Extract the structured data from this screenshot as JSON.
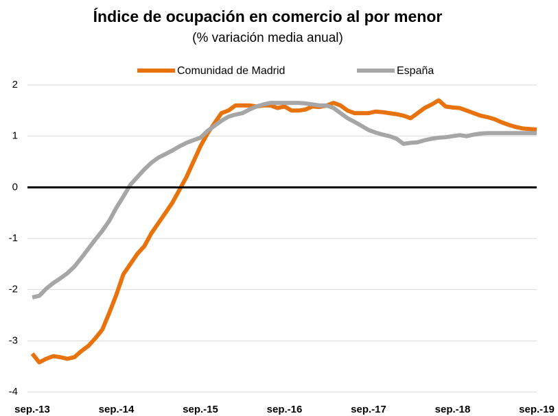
{
  "chart_data": {
    "type": "line",
    "title": "Índice de ocupación en comercio al por menor",
    "subtitle": "(% variación media anual)",
    "categories": [
      "sep.-13",
      null,
      null,
      null,
      null,
      null,
      null,
      null,
      null,
      null,
      null,
      null,
      "sep.-14",
      null,
      null,
      null,
      null,
      null,
      null,
      null,
      null,
      null,
      null,
      null,
      "sep.-15",
      null,
      null,
      null,
      null,
      null,
      null,
      null,
      null,
      null,
      null,
      null,
      "sep.-16",
      null,
      null,
      null,
      null,
      null,
      null,
      null,
      null,
      null,
      null,
      null,
      "sep.-17",
      null,
      null,
      null,
      null,
      null,
      null,
      null,
      null,
      null,
      null,
      null,
      "sep.-18",
      null,
      null,
      null,
      null,
      null,
      null,
      null,
      null,
      null,
      null,
      null,
      "sep.-19"
    ],
    "series": [
      {
        "name": "Comunidad de Madrid",
        "color": "#e8720c",
        "values": [
          -3.25,
          -3.42,
          -3.35,
          -3.3,
          -3.32,
          -3.35,
          -3.32,
          -3.2,
          -3.1,
          -2.95,
          -2.78,
          -2.45,
          -2.1,
          -1.7,
          -1.5,
          -1.3,
          -1.15,
          -0.9,
          -0.7,
          -0.5,
          -0.3,
          -0.05,
          0.2,
          0.5,
          0.8,
          1.05,
          1.25,
          1.45,
          1.5,
          1.6,
          1.6,
          1.6,
          1.58,
          1.6,
          1.6,
          1.55,
          1.58,
          1.5,
          1.5,
          1.52,
          1.58,
          1.57,
          1.6,
          1.65,
          1.6,
          1.5,
          1.45,
          1.45,
          1.45,
          1.48,
          1.47,
          1.45,
          1.43,
          1.4,
          1.35,
          1.45,
          1.55,
          1.62,
          1.7,
          1.58,
          1.56,
          1.55,
          1.5,
          1.45,
          1.4,
          1.37,
          1.33,
          1.27,
          1.22,
          1.18,
          1.15,
          1.14,
          1.13
        ]
      },
      {
        "name": "España",
        "color": "#a6a6a6",
        "values": [
          -2.15,
          -2.12,
          -1.98,
          -1.87,
          -1.78,
          -1.68,
          -1.55,
          -1.38,
          -1.2,
          -1.02,
          -0.85,
          -0.65,
          -0.4,
          -0.18,
          0.05,
          0.2,
          0.35,
          0.48,
          0.58,
          0.65,
          0.72,
          0.8,
          0.87,
          0.92,
          0.97,
          1.1,
          1.2,
          1.3,
          1.38,
          1.42,
          1.45,
          1.52,
          1.58,
          1.62,
          1.65,
          1.65,
          1.65,
          1.65,
          1.65,
          1.64,
          1.62,
          1.6,
          1.6,
          1.55,
          1.45,
          1.35,
          1.28,
          1.2,
          1.12,
          1.07,
          1.03,
          1.0,
          0.95,
          0.85,
          0.87,
          0.88,
          0.92,
          0.95,
          0.97,
          0.98,
          1.0,
          1.02,
          1.0,
          1.03,
          1.05,
          1.06,
          1.06,
          1.06,
          1.06,
          1.06,
          1.06,
          1.06,
          1.06
        ]
      }
    ],
    "ylim": [
      -4,
      2
    ],
    "yticks": [
      -4,
      -3,
      -2,
      -1,
      0,
      1,
      2
    ],
    "grid": true,
    "legend": "top"
  }
}
